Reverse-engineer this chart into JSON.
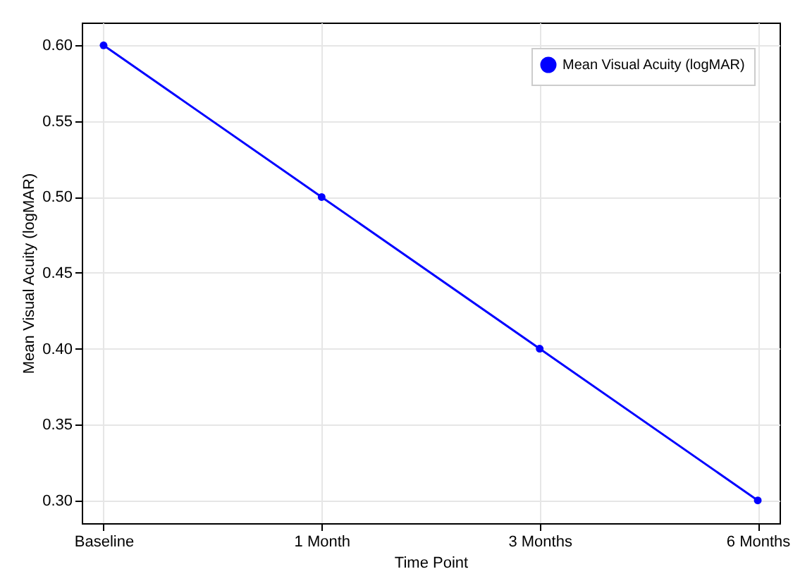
{
  "chart_data": {
    "type": "line",
    "xlabel": "Time Point",
    "ylabel": "Mean Visual Acuity (logMAR)",
    "categories": [
      "Baseline",
      "1 Month",
      "3 Months",
      "6 Months"
    ],
    "series": [
      {
        "name": "Mean Visual Acuity (logMAR)",
        "color": "#0000ff",
        "values": [
          0.6,
          0.5,
          0.4,
          0.3
        ]
      }
    ],
    "ylim": [
      0.285,
      0.615
    ],
    "yticks": [
      {
        "value": 0.3,
        "label": "0.30"
      },
      {
        "value": 0.35,
        "label": "0.35"
      },
      {
        "value": 0.4,
        "label": "0.40"
      },
      {
        "value": 0.45,
        "label": "0.45"
      },
      {
        "value": 0.5,
        "label": "0.50"
      },
      {
        "value": 0.55,
        "label": "0.55"
      },
      {
        "value": 0.6,
        "label": "0.60"
      }
    ],
    "grid": true,
    "legend": "top right",
    "marker": "circle",
    "line_style": "solid"
  }
}
